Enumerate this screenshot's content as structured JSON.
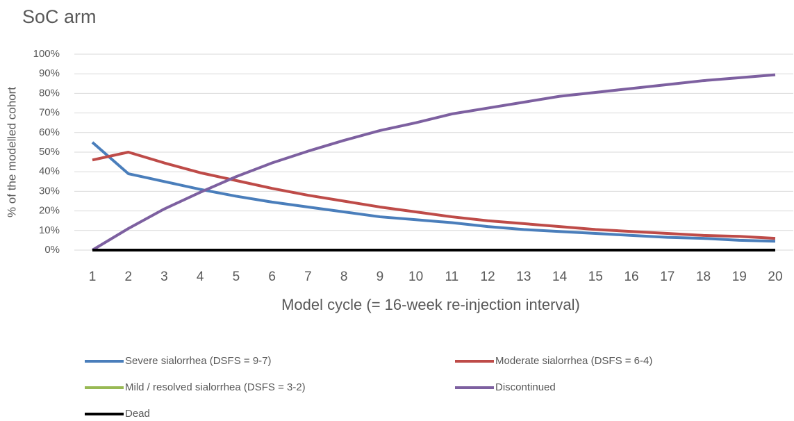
{
  "chart_data": {
    "type": "line",
    "title": "SoC arm",
    "x_label": "Model cycle (= 16-week re-injection interval)",
    "y_label": "% of the modelled cohort",
    "categories": [
      "1",
      "2",
      "3",
      "4",
      "5",
      "6",
      "7",
      "8",
      "9",
      "10",
      "11",
      "12",
      "13",
      "14",
      "15",
      "16",
      "17",
      "18",
      "19",
      "20"
    ],
    "series": [
      {
        "name": "Severe sialorrhea (DSFS = 9-7)",
        "color": "#4a7ebb",
        "values": [
          55,
          39,
          35,
          31,
          27.5,
          24.5,
          22,
          19.5,
          17,
          15.5,
          14,
          12,
          10.5,
          9.5,
          8.5,
          7.5,
          6.5,
          6,
          5,
          4.5
        ]
      },
      {
        "name": "Moderate sialorrhea (DSFS = 6-4)",
        "color": "#be4b48",
        "values": [
          46,
          50,
          44.5,
          39.5,
          35.5,
          31.5,
          28,
          25,
          22,
          19.5,
          17,
          15,
          13.5,
          12,
          10.5,
          9.5,
          8.5,
          7.5,
          7,
          6
        ]
      },
      {
        "name": "Mild / resolved sialorrhea (DSFS = 3-2)",
        "color": "#98b954",
        "values": [
          0,
          0,
          0,
          0,
          0,
          0,
          0,
          0,
          0,
          0,
          0,
          0,
          0,
          0,
          0,
          0,
          0,
          0,
          0,
          0
        ]
      },
      {
        "name": "Discontinued",
        "color": "#7d60a0",
        "values": [
          0,
          11,
          21,
          29.5,
          37.5,
          44.5,
          50.5,
          56,
          61,
          65,
          69.5,
          72.5,
          75.5,
          78.5,
          80.5,
          82.5,
          84.5,
          86.5,
          88,
          89.5
        ]
      },
      {
        "name": "Dead",
        "color": "#000000",
        "values": [
          0,
          0,
          0,
          0,
          0,
          0,
          0,
          0,
          0,
          0,
          0,
          0,
          0,
          0,
          0,
          0,
          0,
          0,
          0,
          0
        ]
      }
    ],
    "ylim": [
      0,
      100
    ],
    "yticks": [
      {
        "value": 0,
        "label": "0%"
      },
      {
        "value": 10,
        "label": "10%"
      },
      {
        "value": 20,
        "label": "20%"
      },
      {
        "value": 30,
        "label": "30%"
      },
      {
        "value": 40,
        "label": "40%"
      },
      {
        "value": 50,
        "label": "50%"
      },
      {
        "value": 60,
        "label": "60%"
      },
      {
        "value": 70,
        "label": "70%"
      },
      {
        "value": 80,
        "label": "80%"
      },
      {
        "value": 90,
        "label": "90%"
      },
      {
        "value": 100,
        "label": "100%"
      }
    ],
    "grid": true
  }
}
